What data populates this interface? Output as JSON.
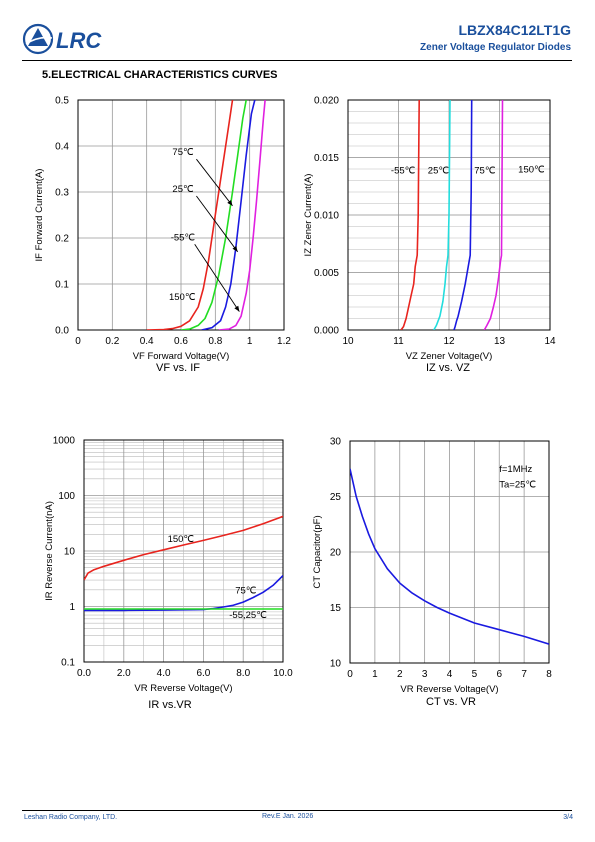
{
  "header": {
    "logo_text": "LRC",
    "part_number": "LBZX84C12LT1G",
    "subtitle": "Zener Voltage Regulator Diodes"
  },
  "section_title": "5.ELECTRICAL CHARACTERISTICS CURVES",
  "footer": {
    "company": "Leshan Radio Company, LTD.",
    "revision": "Rev.E   Jan.  2026",
    "page": "3/4"
  },
  "chart_data": [
    {
      "id": "vf-if",
      "type": "line",
      "caption": "VF vs. IF",
      "xlabel": "VF Forward Voltage(V)",
      "ylabel": "IF Forward Current(A)",
      "xlim": [
        0,
        1.2
      ],
      "ylim": [
        0,
        0.5
      ],
      "xticks": [
        0,
        0.2,
        0.4,
        0.6,
        0.8,
        1,
        1.2
      ],
      "xtick_labels": [
        "0",
        "0.2",
        "0.4",
        "0.6",
        "0.8",
        "1",
        "1.2"
      ],
      "yticks": [
        0,
        0.1,
        0.2,
        0.3,
        0.4,
        0.5
      ],
      "ytick_labels": [
        "0.0",
        "0.1",
        "0.2",
        "0.3",
        "0.4",
        "0.5"
      ],
      "grid": true,
      "series": [
        {
          "name": "75℃",
          "color": "#e8241e",
          "x": [
            0.4,
            0.5,
            0.55,
            0.6,
            0.65,
            0.7,
            0.73,
            0.76,
            0.8,
            0.84,
            0.88,
            0.9
          ],
          "y": [
            0,
            0.001,
            0.003,
            0.008,
            0.02,
            0.05,
            0.09,
            0.15,
            0.25,
            0.35,
            0.45,
            0.5
          ]
        },
        {
          "name": "25℃",
          "color": "#22dd22",
          "x": [
            0.6,
            0.65,
            0.7,
            0.74,
            0.78,
            0.82,
            0.86,
            0.9,
            0.93,
            0.96,
            0.98
          ],
          "y": [
            0,
            0.002,
            0.01,
            0.025,
            0.06,
            0.12,
            0.2,
            0.3,
            0.38,
            0.46,
            0.5
          ]
        },
        {
          "name": "-55℃",
          "color": "#1a1ae0",
          "x": [
            0.72,
            0.78,
            0.83,
            0.86,
            0.89,
            0.92,
            0.95,
            0.98,
            1.01,
            1.03
          ],
          "y": [
            0,
            0.005,
            0.02,
            0.05,
            0.1,
            0.18,
            0.28,
            0.38,
            0.47,
            0.5
          ]
        },
        {
          "name": "150℃",
          "color": "#e020e0",
          "x": [
            0.82,
            0.88,
            0.92,
            0.95,
            0.98,
            1.0,
            1.02,
            1.04,
            1.06,
            1.08,
            1.09
          ],
          "y": [
            0,
            0.002,
            0.01,
            0.03,
            0.08,
            0.13,
            0.2,
            0.28,
            0.37,
            0.46,
            0.5
          ]
        }
      ],
      "annotations": [
        {
          "text": "75℃",
          "x": 0.55,
          "y": 0.38,
          "arrow_to": [
            0.9,
            0.27
          ]
        },
        {
          "text": "25℃",
          "x": 0.55,
          "y": 0.3,
          "arrow_to": [
            0.93,
            0.17
          ]
        },
        {
          "text": "-55℃",
          "x": 0.54,
          "y": 0.195,
          "arrow_to": [
            0.94,
            0.04
          ]
        },
        {
          "text": "150℃",
          "x": 0.53,
          "y": 0.065,
          "arrow_to": null
        }
      ]
    },
    {
      "id": "iz-vz",
      "type": "line",
      "caption": "IZ vs. VZ",
      "xlabel": "VZ Zener Voltage(V)",
      "ylabel": "IZ Zener Current(A)",
      "xlim": [
        10,
        14
      ],
      "ylim": [
        0,
        0.02
      ],
      "xticks": [
        10,
        11,
        12,
        13,
        14
      ],
      "xtick_labels": [
        "10",
        "11",
        "12",
        "13",
        "14"
      ],
      "yticks": [
        0,
        0.005,
        0.01,
        0.015,
        0.02
      ],
      "ytick_labels": [
        "0.000",
        "0.005",
        "0.010",
        "0.015",
        "0.020"
      ],
      "grid": true,
      "series": [
        {
          "name": "-55℃",
          "color": "#e8241e",
          "x": [
            11.05,
            11.1,
            11.15,
            11.2,
            11.25,
            11.3,
            11.33,
            11.37,
            11.39,
            11.4,
            11.41
          ],
          "y": [
            0,
            0.0003,
            0.001,
            0.002,
            0.003,
            0.004,
            0.0055,
            0.0065,
            0.01,
            0.015,
            0.02
          ]
        },
        {
          "name": "25℃",
          "color": "#22dddd",
          "x": [
            11.7,
            11.75,
            11.82,
            11.88,
            11.92,
            11.95,
            11.98,
            12.0,
            12.01,
            12.02
          ],
          "y": [
            0,
            0.0004,
            0.0012,
            0.0025,
            0.004,
            0.0055,
            0.0065,
            0.01,
            0.015,
            0.02
          ]
        },
        {
          "name": "75℃",
          "color": "#1a1ae0",
          "x": [
            12.1,
            12.12,
            12.15,
            12.18,
            12.25,
            12.32,
            12.38,
            12.42,
            12.44,
            12.45
          ],
          "y": [
            0,
            0.0003,
            0.0008,
            0.0012,
            0.0025,
            0.004,
            0.0055,
            0.0065,
            0.012,
            0.02
          ]
        },
        {
          "name": "150℃",
          "color": "#e020e0",
          "x": [
            12.7,
            12.75,
            12.82,
            12.88,
            12.93,
            12.98,
            13.02,
            13.04,
            13.05,
            13.06
          ],
          "y": [
            0,
            0.0004,
            0.001,
            0.002,
            0.003,
            0.0045,
            0.006,
            0.0065,
            0.013,
            0.02
          ]
        }
      ],
      "annotations": [
        {
          "text": "-55℃",
          "x": 10.85,
          "y": 0.0136
        },
        {
          "text": "25℃",
          "x": 11.58,
          "y": 0.0136
        },
        {
          "text": "75℃",
          "x": 12.5,
          "y": 0.0136
        },
        {
          "text": "150℃",
          "x": 13.37,
          "y": 0.0137
        }
      ]
    },
    {
      "id": "ir-vr",
      "type": "line",
      "caption": "IR vs.VR",
      "xlabel": "VR Reverse Voltage(V)",
      "ylabel": "IR Reverse Current(nA)",
      "xlim": [
        0,
        10
      ],
      "ylim": [
        0.1,
        1000
      ],
      "yscale": "log",
      "xticks": [
        0,
        2,
        4,
        6,
        8,
        10
      ],
      "xtick_labels": [
        "0.0",
        "2.0",
        "4.0",
        "6.0",
        "8.0",
        "10.0"
      ],
      "yticks": [
        0.1,
        1,
        10,
        100,
        1000
      ],
      "ytick_labels": [
        "0.1",
        "1",
        "10",
        "100",
        "1000"
      ],
      "grid": true,
      "series": [
        {
          "name": "150℃",
          "color": "#e8241e",
          "x": [
            0,
            0.2,
            0.5,
            1,
            2,
            3,
            4,
            5,
            6,
            7,
            8,
            9,
            10
          ],
          "y": [
            3,
            4,
            4.6,
            5.3,
            6.8,
            8.6,
            10.5,
            12.8,
            15.5,
            19,
            23.5,
            31,
            42
          ]
        },
        {
          "name": "75℃",
          "color": "#1a1ae0",
          "x": [
            0,
            2,
            4,
            6,
            6.5,
            7,
            7.5,
            8,
            8.5,
            9,
            9.5,
            10
          ],
          "y": [
            0.85,
            0.85,
            0.86,
            0.88,
            0.92,
            0.98,
            1.05,
            1.2,
            1.45,
            1.8,
            2.4,
            3.6
          ]
        },
        {
          "name": "-55,25℃",
          "color": "#22dd22",
          "x": [
            0,
            10
          ],
          "y": [
            0.9,
            0.9
          ]
        }
      ],
      "annotations": [
        {
          "text": "150℃",
          "x": 4.2,
          "y": 14.5
        },
        {
          "text": "75℃",
          "x": 7.6,
          "y": 1.7
        },
        {
          "text": "-55,25℃",
          "x": 7.3,
          "y": 0.62
        }
      ]
    },
    {
      "id": "ct-vr",
      "type": "line",
      "caption": "CT vs. VR",
      "xlabel": "VR Reverse Voltage(V)",
      "ylabel": "CT Capacitor(pF)",
      "xlim": [
        0,
        8
      ],
      "ylim": [
        10,
        30
      ],
      "xticks": [
        0,
        1,
        2,
        3,
        4,
        5,
        6,
        7,
        8
      ],
      "xtick_labels": [
        "0",
        "1",
        "2",
        "3",
        "4",
        "5",
        "6",
        "7",
        "8"
      ],
      "yticks": [
        10,
        15,
        20,
        25,
        30
      ],
      "ytick_labels": [
        "10",
        "15",
        "20",
        "25",
        "30"
      ],
      "grid": true,
      "series": [
        {
          "name": "",
          "color": "#1a1ae0",
          "x": [
            0,
            0.25,
            0.5,
            0.75,
            1,
            1.5,
            2,
            2.5,
            3,
            3.5,
            4,
            5,
            6,
            7,
            8
          ],
          "y": [
            27.5,
            25,
            23.2,
            21.6,
            20.3,
            18.5,
            17.2,
            16.3,
            15.6,
            15.0,
            14.5,
            13.6,
            13.0,
            12.4,
            11.7
          ]
        }
      ],
      "annotations": [
        {
          "text": "f=1MHz",
          "x": 6.0,
          "y": 27.2
        },
        {
          "text": "Ta=25℃",
          "x": 6.0,
          "y": 25.8
        }
      ]
    }
  ]
}
